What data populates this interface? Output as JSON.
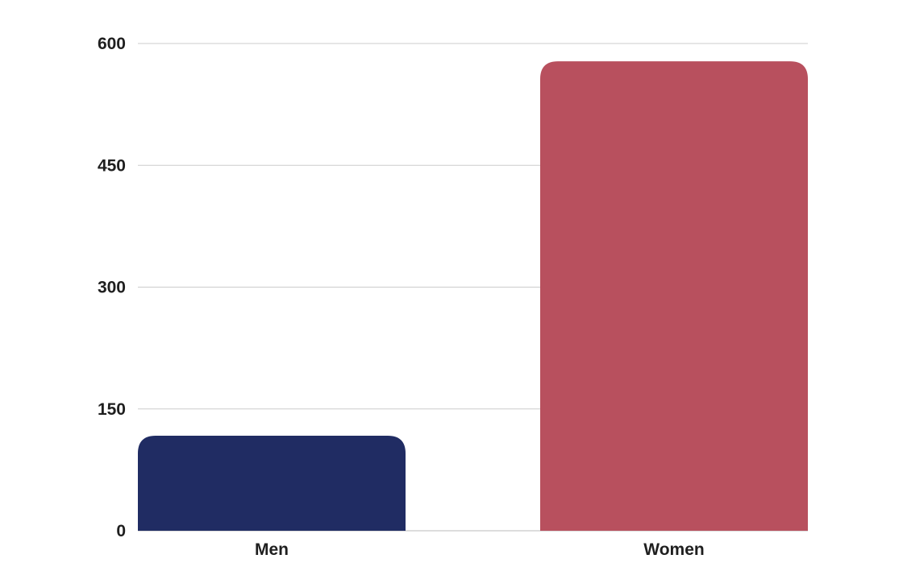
{
  "chart_data": {
    "type": "bar",
    "categories": [
      "Men",
      "Women"
    ],
    "values": [
      117,
      578
    ],
    "colors": [
      "#202c63",
      "#b8505e"
    ],
    "yticks": [
      0,
      150,
      300,
      450,
      600
    ],
    "ylim": [
      0,
      600
    ],
    "grid": true,
    "legend": "none"
  }
}
